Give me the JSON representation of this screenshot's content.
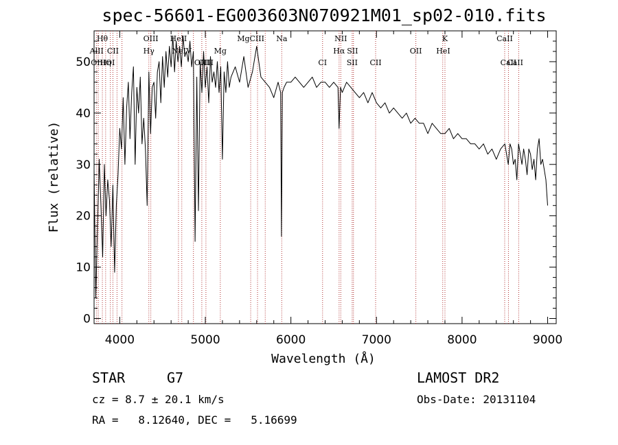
{
  "chart_data": {
    "type": "line",
    "title": "spec-56601-EG003603N070921M01_sp02-010.fits",
    "xlabel": "Wavelength (Å)",
    "ylabel": "Flux (relative)",
    "xlim": [
      3700,
      9100
    ],
    "ylim": [
      -1,
      56
    ],
    "x_ticks": [
      4000,
      5000,
      6000,
      7000,
      8000,
      9000
    ],
    "y_ticks": [
      0,
      10,
      20,
      30,
      40,
      50
    ],
    "grid": false,
    "series": [
      {
        "x": [
          3700,
          3720,
          3740,
          3760,
          3780,
          3800,
          3820,
          3840,
          3860,
          3880,
          3900,
          3920,
          3940,
          3960,
          3980,
          4000,
          4020,
          4040,
          4060,
          4080,
          4100,
          4120,
          4140,
          4160,
          4180,
          4200,
          4220,
          4240,
          4260,
          4280,
          4300,
          4320,
          4340,
          4360,
          4380,
          4400,
          4420,
          4440,
          4460,
          4480,
          4500,
          4520,
          4540,
          4560,
          4580,
          4600,
          4620,
          4640,
          4660,
          4680,
          4700,
          4720,
          4740,
          4760,
          4780,
          4800,
          4820,
          4840,
          4860,
          4880,
          4900,
          4920,
          4940,
          4960,
          4980,
          5000,
          5020,
          5040,
          5060,
          5080,
          5100,
          5120,
          5140,
          5160,
          5180,
          5200,
          5220,
          5240,
          5260,
          5280,
          5300,
          5350,
          5400,
          5450,
          5500,
          5550,
          5600,
          5650,
          5700,
          5750,
          5800,
          5850,
          5880,
          5890,
          5900,
          5920,
          5950,
          6000,
          6050,
          6100,
          6150,
          6200,
          6250,
          6300,
          6350,
          6400,
          6450,
          6500,
          6550,
          6563,
          6580,
          6600,
          6650,
          6700,
          6750,
          6800,
          6850,
          6900,
          6950,
          7000,
          7050,
          7100,
          7150,
          7200,
          7250,
          7300,
          7350,
          7400,
          7450,
          7500,
          7550,
          7600,
          7650,
          7700,
          7750,
          7800,
          7850,
          7900,
          7950,
          8000,
          8050,
          8100,
          8150,
          8200,
          8250,
          8300,
          8350,
          8400,
          8450,
          8500,
          8520,
          8540,
          8560,
          8580,
          8600,
          8620,
          8640,
          8660,
          8680,
          8700,
          8720,
          8740,
          8760,
          8780,
          8800,
          8820,
          8840,
          8860,
          8880,
          8900,
          8920,
          8940,
          8960,
          8980,
          9000
        ],
        "values": [
          29,
          4,
          18,
          31,
          22,
          12,
          30,
          20,
          27,
          23,
          14,
          26,
          9,
          22,
          28,
          37,
          33,
          43,
          30,
          41,
          46,
          35,
          44,
          49,
          30,
          45,
          40,
          47,
          34,
          39,
          33,
          22,
          48,
          36,
          45,
          46,
          39,
          48,
          50,
          42,
          51,
          45,
          52,
          47,
          53,
          49,
          55,
          48,
          54,
          50,
          53,
          49,
          55,
          51,
          52,
          50,
          54,
          49,
          52,
          15,
          47,
          21,
          50,
          44,
          52,
          45,
          49,
          42,
          51,
          46,
          48,
          45,
          50,
          44,
          49,
          31,
          48,
          44,
          50,
          45,
          47,
          49,
          46,
          51,
          45,
          48,
          53,
          47,
          46,
          45,
          43,
          46,
          44,
          16,
          44,
          45,
          46,
          46,
          47,
          46,
          45,
          46,
          47,
          45,
          46,
          46,
          45,
          46,
          45,
          37,
          45,
          44,
          46,
          45,
          44,
          43,
          44,
          42,
          44,
          42,
          41,
          42,
          40,
          41,
          40,
          39,
          40,
          38,
          39,
          38,
          38,
          36,
          38,
          37,
          36,
          36,
          37,
          35,
          36,
          35,
          35,
          34,
          34,
          33,
          34,
          32,
          33,
          31,
          33,
          34,
          32,
          30,
          34,
          33,
          30,
          31,
          27,
          34,
          32,
          30,
          33,
          31,
          28,
          33,
          32,
          29,
          31,
          27,
          33,
          35,
          30,
          31,
          29,
          27,
          22
        ]
      }
    ],
    "line_ids": [
      {
        "label": "Hθ",
        "x": 3797,
        "row": 0
      },
      {
        "label": "AlII",
        "x": 3730,
        "row": 1
      },
      {
        "label": "OIII",
        "x": 3750,
        "row": 2
      },
      {
        "label": "Hη",
        "x": 3835,
        "row": 2
      },
      {
        "label": "CII",
        "x": 3920,
        "row": 1
      },
      {
        "label": "OI",
        "x": 3890,
        "row": 2
      },
      {
        "label": "OIII",
        "x": 4363,
        "row": 0
      },
      {
        "label": "Hγ",
        "x": 4340,
        "row": 1
      },
      {
        "label": "HeII",
        "x": 4686,
        "row": 0
      },
      {
        "label": "NeIV",
        "x": 4725,
        "row": 1
      },
      {
        "label": "OIII",
        "x": 4959,
        "row": 2
      },
      {
        "label": "OIII",
        "x": 5007,
        "row": 2
      },
      {
        "label": "Mg",
        "x": 5175,
        "row": 1
      },
      {
        "label": "MgCIII",
        "x": 5530,
        "row": 0
      },
      {
        "label": "Na",
        "x": 5893,
        "row": 0
      },
      {
        "label": "CI",
        "x": 6370,
        "row": 2
      },
      {
        "label": "NII",
        "x": 6583,
        "row": 0
      },
      {
        "label": "Hα",
        "x": 6563,
        "row": 1
      },
      {
        "label": "SII",
        "x": 6720,
        "row": 1
      },
      {
        "label": "SII",
        "x": 6716,
        "row": 2
      },
      {
        "label": "CII",
        "x": 6990,
        "row": 2
      },
      {
        "label": "OII",
        "x": 7460,
        "row": 1
      },
      {
        "label": "K",
        "x": 7800,
        "row": 0
      },
      {
        "label": "HeI",
        "x": 7780,
        "row": 1
      },
      {
        "label": "CaII",
        "x": 8498,
        "row": 0
      },
      {
        "label": "CaII",
        "x": 8542,
        "row": 2
      },
      {
        "label": "CaII",
        "x": 8620,
        "row": 2
      }
    ],
    "line_markers": [
      3730,
      3750,
      3797,
      3835,
      3890,
      3920,
      3968,
      4026,
      4340,
      4363,
      4686,
      4725,
      4861,
      4959,
      5007,
      5175,
      5530,
      5610,
      5700,
      5893,
      6370,
      6563,
      6583,
      6716,
      6731,
      6990,
      7460,
      7774,
      7800,
      8498,
      8542,
      8662
    ],
    "line_color": "#000000",
    "marker_color": "#b03030"
  },
  "info": {
    "class": "STAR",
    "subclass": "G7",
    "cz": "cz = 8.7 ± 20.1 km/s",
    "radec": "RA =   8.12640, DEC =   5.16699",
    "survey": "LAMOST DR2",
    "obsdate": "Obs-Date: 20131104"
  }
}
